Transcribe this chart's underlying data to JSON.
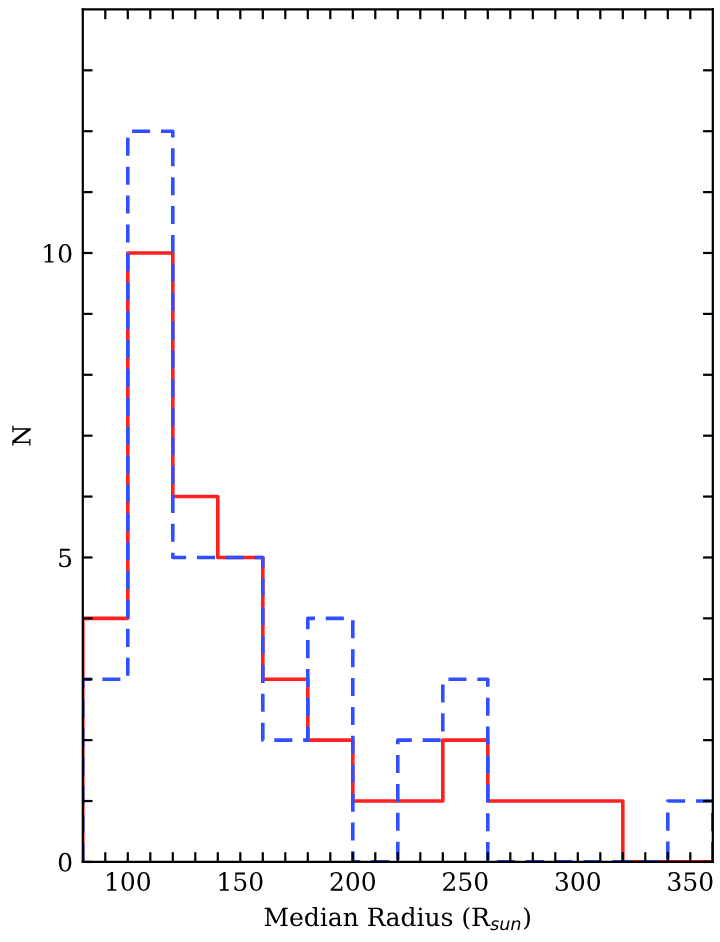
{
  "chart_data": {
    "type": "histogram",
    "xlabel": "Median Radius (R$_{sun}$)",
    "ylabel": "N",
    "bins": [
      80,
      100,
      120,
      140,
      160,
      180,
      200,
      220,
      240,
      260,
      280,
      300,
      320,
      340,
      360
    ],
    "series": [
      {
        "color": "#ff2020",
        "line_style": "solid",
        "values": [
          4,
          10,
          6,
          5,
          3,
          2,
          1,
          1,
          2,
          1,
          1,
          1,
          0,
          0
        ]
      },
      {
        "color": "#3050ff",
        "line_style": "dashed",
        "values": [
          3,
          12,
          5,
          5,
          2,
          4,
          0,
          2,
          3,
          0,
          0,
          0,
          0,
          1
        ]
      }
    ],
    "xlim": [
      80,
      360
    ],
    "ylim": [
      0,
      14
    ],
    "xticks": [
      {
        "value": 90,
        "label": null
      },
      100,
      {
        "value": 110,
        "label": null
      },
      {
        "value": 120,
        "label": null
      },
      {
        "value": 130,
        "label": null
      },
      {
        "value": 140,
        "label": null
      },
      150,
      {
        "value": 160,
        "label": null
      },
      {
        "value": 170,
        "label": null
      },
      {
        "value": 180,
        "label": null
      },
      {
        "value": 190,
        "label": null
      },
      200,
      {
        "value": 210,
        "label": null
      },
      {
        "value": 220,
        "label": null
      },
      {
        "value": 230,
        "label": null
      },
      {
        "value": 240,
        "label": null
      },
      250,
      {
        "value": 260,
        "label": null
      },
      {
        "value": 270,
        "label": null
      },
      {
        "value": 280,
        "label": null
      },
      {
        "value": 290,
        "label": null
      },
      300,
      {
        "value": 310,
        "label": null
      },
      {
        "value": 320,
        "label": null
      },
      {
        "value": 330,
        "label": null
      },
      {
        "value": 340,
        "label": null
      },
      350
    ],
    "yticks": [
      0,
      {
        "value": 1,
        "label": null
      },
      {
        "value": 2,
        "label": null
      },
      {
        "value": 3,
        "label": null
      },
      {
        "value": 4,
        "label": null
      },
      5,
      {
        "value": 6,
        "label": null
      },
      {
        "value": 7,
        "label": null
      },
      {
        "value": 8,
        "label": null
      },
      {
        "value": 9,
        "label": null
      },
      10,
      {
        "value": 11,
        "label": null
      },
      {
        "value": 12,
        "label": null
      },
      {
        "value": 13,
        "label": null
      }
    ],
    "grid": false,
    "legend": false
  }
}
